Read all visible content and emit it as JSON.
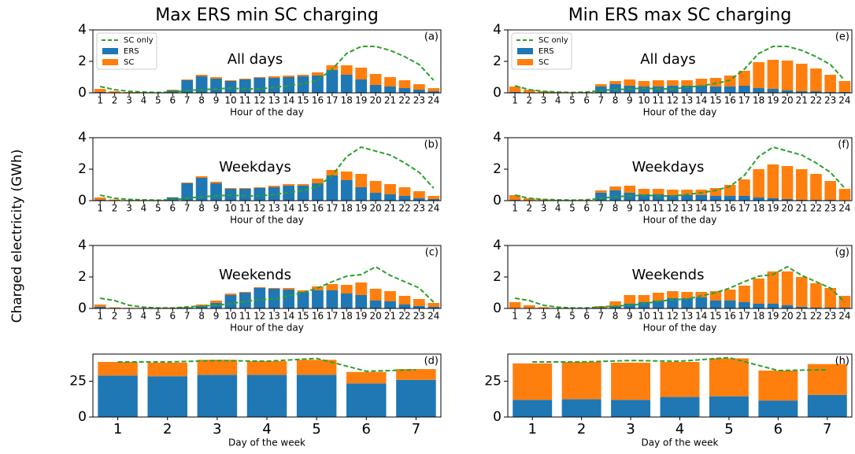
{
  "ylabel": "Charged electricity (GWh)",
  "chart_data": [
    {
      "type": "bar",
      "stacked": true,
      "title": "Max ERS min SC charging",
      "panel_label": "(a)",
      "annotation": "All days",
      "xlabel": "Hour of the day",
      "legend": "upper left",
      "categories": [
        "1",
        "2",
        "3",
        "4",
        "5",
        "6",
        "7",
        "8",
        "9",
        "10",
        "11",
        "12",
        "13",
        "14",
        "15",
        "16",
        "17",
        "18",
        "19",
        "20",
        "21",
        "22",
        "23",
        "24"
      ],
      "ylim": [
        0,
        4
      ],
      "yticks": [
        0,
        2,
        4
      ],
      "series": [
        {
          "name": "ERS",
          "color": "#1f77b4",
          "values": [
            0.05,
            0.02,
            0.02,
            0.02,
            0.02,
            0.15,
            0.8,
            1.05,
            0.9,
            0.75,
            0.85,
            0.95,
            0.95,
            1.0,
            1.05,
            1.1,
            1.45,
            1.15,
            0.85,
            0.5,
            0.4,
            0.3,
            0.2,
            0.1
          ]
        },
        {
          "name": "SC",
          "color": "#ff7f0e",
          "values": [
            0.2,
            0.08,
            0.03,
            0.02,
            0.01,
            0.05,
            0.05,
            0.1,
            0.1,
            0.05,
            0.05,
            0.05,
            0.1,
            0.1,
            0.1,
            0.2,
            0.3,
            0.6,
            0.75,
            0.7,
            0.6,
            0.5,
            0.35,
            0.2
          ]
        },
        {
          "name": "SC only",
          "color": "#2ca02c",
          "type": "line",
          "dashed": true,
          "values": [
            0.4,
            0.2,
            0.1,
            0.05,
            0.02,
            0.05,
            0.15,
            0.2,
            0.25,
            0.3,
            0.25,
            0.25,
            0.35,
            0.45,
            0.6,
            0.8,
            1.5,
            2.5,
            2.95,
            2.95,
            2.7,
            2.3,
            1.8,
            0.8
          ]
        }
      ]
    },
    {
      "type": "bar",
      "stacked": true,
      "panel_label": "(b)",
      "annotation": "Weekdays",
      "xlabel": "Hour of the day",
      "categories": [
        "1",
        "2",
        "3",
        "4",
        "5",
        "6",
        "7",
        "8",
        "9",
        "10",
        "11",
        "12",
        "13",
        "14",
        "15",
        "16",
        "17",
        "18",
        "19",
        "20",
        "21",
        "22",
        "23",
        "24"
      ],
      "ylim": [
        0,
        4
      ],
      "yticks": [
        0,
        2,
        4
      ],
      "series": [
        {
          "name": "ERS",
          "color": "#1f77b4",
          "values": [
            0.05,
            0.02,
            0.02,
            0.02,
            0.02,
            0.2,
            1.1,
            1.45,
            1.1,
            0.75,
            0.75,
            0.8,
            0.85,
            0.95,
            0.95,
            1.1,
            1.6,
            1.3,
            0.85,
            0.5,
            0.4,
            0.3,
            0.15,
            0.1
          ]
        },
        {
          "name": "SC",
          "color": "#ff7f0e",
          "values": [
            0.15,
            0.05,
            0.02,
            0.02,
            0.02,
            0.02,
            0.05,
            0.1,
            0.1,
            0.05,
            0.05,
            0.05,
            0.1,
            0.1,
            0.1,
            0.3,
            0.35,
            0.55,
            0.85,
            0.75,
            0.65,
            0.55,
            0.45,
            0.2
          ]
        },
        {
          "name": "SC only",
          "color": "#2ca02c",
          "type": "line",
          "dashed": true,
          "values": [
            0.35,
            0.15,
            0.08,
            0.05,
            0.03,
            0.05,
            0.15,
            0.25,
            0.3,
            0.35,
            0.3,
            0.3,
            0.4,
            0.5,
            0.65,
            0.9,
            1.6,
            2.8,
            3.4,
            3.15,
            2.9,
            2.4,
            1.8,
            0.8
          ]
        }
      ]
    },
    {
      "type": "bar",
      "stacked": true,
      "panel_label": "(c)",
      "annotation": "Weekends",
      "xlabel": "Hour of the day",
      "categories": [
        "1",
        "2",
        "3",
        "4",
        "5",
        "6",
        "7",
        "8",
        "9",
        "10",
        "11",
        "12",
        "13",
        "14",
        "15",
        "16",
        "17",
        "18",
        "19",
        "20",
        "21",
        "22",
        "23",
        "24"
      ],
      "ylim": [
        0,
        4
      ],
      "yticks": [
        0,
        2,
        4
      ],
      "series": [
        {
          "name": "ERS",
          "color": "#1f77b4",
          "values": [
            0.1,
            0.02,
            0.02,
            0.02,
            0.02,
            0.03,
            0.05,
            0.15,
            0.35,
            0.85,
            1.0,
            1.3,
            1.25,
            1.2,
            1.05,
            1.15,
            1.15,
            0.95,
            0.85,
            0.5,
            0.45,
            0.25,
            0.15,
            0.1
          ]
        },
        {
          "name": "SC",
          "color": "#ff7f0e",
          "values": [
            0.15,
            0.05,
            0.02,
            0.02,
            0.02,
            0.02,
            0.03,
            0.1,
            0.15,
            0.1,
            0.05,
            0.05,
            0.05,
            0.1,
            0.1,
            0.25,
            0.4,
            0.55,
            0.8,
            0.75,
            0.65,
            0.55,
            0.45,
            0.25
          ]
        },
        {
          "name": "SC only",
          "color": "#2ca02c",
          "type": "line",
          "dashed": true,
          "values": [
            0.65,
            0.5,
            0.2,
            0.08,
            0.03,
            0.03,
            0.1,
            0.15,
            0.2,
            0.3,
            0.45,
            0.55,
            0.6,
            0.8,
            1.0,
            1.3,
            1.7,
            2.05,
            2.15,
            2.65,
            2.1,
            1.7,
            1.3,
            0.4
          ]
        }
      ]
    },
    {
      "type": "bar",
      "stacked": true,
      "panel_label": "(d)",
      "xlabel": "Day of the week",
      "categories": [
        "1",
        "2",
        "3",
        "4",
        "5",
        "6",
        "7"
      ],
      "ylim": [
        0,
        44
      ],
      "yticks": [
        0,
        25
      ],
      "series": [
        {
          "name": "ERS",
          "color": "#1f77b4",
          "values": [
            29,
            28.5,
            29.5,
            29.5,
            29.5,
            23.5,
            26
          ]
        },
        {
          "name": "SC",
          "color": "#ff7f0e",
          "values": [
            9.5,
            9.5,
            10.5,
            9.5,
            10.5,
            8,
            7.5
          ]
        },
        {
          "name": "SC only",
          "color": "#2ca02c",
          "type": "line",
          "dashed": true,
          "values": [
            38.5,
            38.5,
            39.5,
            39,
            41,
            32,
            33
          ]
        }
      ]
    },
    {
      "type": "bar",
      "stacked": true,
      "title": "Min ERS max SC charging",
      "panel_label": "(e)",
      "annotation": "All days",
      "xlabel": "Hour of the day",
      "legend": "upper left",
      "categories": [
        "1",
        "2",
        "3",
        "4",
        "5",
        "6",
        "7",
        "8",
        "9",
        "10",
        "11",
        "12",
        "13",
        "14",
        "15",
        "16",
        "17",
        "18",
        "19",
        "20",
        "21",
        "22",
        "23",
        "24"
      ],
      "ylim": [
        0,
        4
      ],
      "yticks": [
        0,
        2,
        4
      ],
      "series": [
        {
          "name": "ERS",
          "color": "#1f77b4",
          "values": [
            0.05,
            0.02,
            0.02,
            0.02,
            0.02,
            0.02,
            0.4,
            0.55,
            0.45,
            0.4,
            0.4,
            0.45,
            0.45,
            0.45,
            0.4,
            0.4,
            0.45,
            0.3,
            0.25,
            0.15,
            0.1,
            0.1,
            0.05,
            0.05
          ]
        },
        {
          "name": "SC",
          "color": "#ff7f0e",
          "values": [
            0.35,
            0.18,
            0.08,
            0.03,
            0.01,
            0.03,
            0.15,
            0.2,
            0.4,
            0.35,
            0.4,
            0.35,
            0.35,
            0.45,
            0.55,
            0.7,
            0.95,
            1.65,
            1.85,
            1.9,
            1.75,
            1.45,
            1.1,
            0.7
          ]
        },
        {
          "name": "SC only",
          "color": "#2ca02c",
          "type": "line",
          "dashed": true,
          "values": [
            0.45,
            0.2,
            0.1,
            0.05,
            0.02,
            0.05,
            0.15,
            0.2,
            0.25,
            0.3,
            0.25,
            0.25,
            0.35,
            0.45,
            0.6,
            0.8,
            1.5,
            2.5,
            2.95,
            2.95,
            2.7,
            2.3,
            1.8,
            0.8
          ]
        }
      ]
    },
    {
      "type": "bar",
      "stacked": true,
      "panel_label": "(f)",
      "annotation": "Weekdays",
      "xlabel": "Hour of the day",
      "categories": [
        "1",
        "2",
        "3",
        "4",
        "5",
        "6",
        "7",
        "8",
        "9",
        "10",
        "11",
        "12",
        "13",
        "14",
        "15",
        "16",
        "17",
        "18",
        "19",
        "20",
        "21",
        "22",
        "23",
        "24"
      ],
      "ylim": [
        0,
        4
      ],
      "yticks": [
        0,
        2,
        4
      ],
      "series": [
        {
          "name": "ERS",
          "color": "#1f77b4",
          "values": [
            0.05,
            0.02,
            0.02,
            0.02,
            0.02,
            0.02,
            0.5,
            0.65,
            0.5,
            0.4,
            0.4,
            0.35,
            0.35,
            0.35,
            0.3,
            0.3,
            0.3,
            0.2,
            0.15,
            0.1,
            0.05,
            0.05,
            0.05,
            0.03
          ]
        },
        {
          "name": "SC",
          "color": "#ff7f0e",
          "values": [
            0.3,
            0.13,
            0.06,
            0.02,
            0.02,
            0.02,
            0.15,
            0.25,
            0.45,
            0.35,
            0.35,
            0.35,
            0.35,
            0.35,
            0.5,
            0.7,
            1.05,
            1.8,
            2.15,
            2.1,
            1.95,
            1.65,
            1.2,
            0.72
          ]
        },
        {
          "name": "SC only",
          "color": "#2ca02c",
          "type": "line",
          "dashed": true,
          "values": [
            0.35,
            0.15,
            0.08,
            0.05,
            0.03,
            0.05,
            0.15,
            0.25,
            0.3,
            0.35,
            0.3,
            0.3,
            0.4,
            0.5,
            0.65,
            0.9,
            1.6,
            2.8,
            3.4,
            3.15,
            2.9,
            2.4,
            1.8,
            0.8
          ]
        }
      ]
    },
    {
      "type": "bar",
      "stacked": true,
      "panel_label": "(g)",
      "annotation": "Weekends",
      "xlabel": "Hour of the day",
      "categories": [
        "1",
        "2",
        "3",
        "4",
        "5",
        "6",
        "7",
        "8",
        "9",
        "10",
        "11",
        "12",
        "13",
        "14",
        "15",
        "16",
        "17",
        "18",
        "19",
        "20",
        "21",
        "22",
        "23",
        "24"
      ],
      "ylim": [
        0,
        4
      ],
      "yticks": [
        0,
        2,
        4
      ],
      "series": [
        {
          "name": "ERS",
          "color": "#1f77b4",
          "values": [
            0.03,
            0.02,
            0.01,
            0.01,
            0.01,
            0.01,
            0.05,
            0.15,
            0.3,
            0.4,
            0.5,
            0.65,
            0.65,
            0.7,
            0.5,
            0.5,
            0.4,
            0.3,
            0.3,
            0.2,
            0.1,
            0.05,
            0.05,
            0.05
          ]
        },
        {
          "name": "SC",
          "color": "#ff7f0e",
          "values": [
            0.37,
            0.18,
            0.07,
            0.02,
            0.02,
            0.02,
            0.1,
            0.3,
            0.55,
            0.45,
            0.5,
            0.45,
            0.4,
            0.35,
            0.6,
            0.7,
            1.05,
            1.6,
            2.05,
            2.15,
            1.9,
            1.55,
            1.25,
            0.75
          ]
        },
        {
          "name": "SC only",
          "color": "#2ca02c",
          "type": "line",
          "dashed": true,
          "values": [
            0.65,
            0.5,
            0.2,
            0.08,
            0.03,
            0.03,
            0.1,
            0.15,
            0.2,
            0.3,
            0.45,
            0.55,
            0.6,
            0.8,
            1.0,
            1.3,
            1.7,
            2.05,
            2.15,
            2.65,
            2.1,
            1.7,
            1.3,
            0.4
          ]
        }
      ]
    },
    {
      "type": "bar",
      "stacked": true,
      "panel_label": "(h)",
      "xlabel": "Day of the week",
      "categories": [
        "1",
        "2",
        "3",
        "4",
        "5",
        "6",
        "7"
      ],
      "ylim": [
        0,
        44
      ],
      "yticks": [
        0,
        25
      ],
      "series": [
        {
          "name": "ERS",
          "color": "#1f77b4",
          "values": [
            12,
            12.5,
            12,
            14,
            14.5,
            11.5,
            15.5
          ]
        },
        {
          "name": "SC",
          "color": "#ff7f0e",
          "values": [
            25.5,
            26,
            26,
            24.5,
            26.5,
            21,
            21.5
          ]
        },
        {
          "name": "SC only",
          "color": "#2ca02c",
          "type": "line",
          "dashed": true,
          "values": [
            38.5,
            38.5,
            39.5,
            39,
            41.5,
            32.5,
            33
          ]
        }
      ]
    }
  ]
}
